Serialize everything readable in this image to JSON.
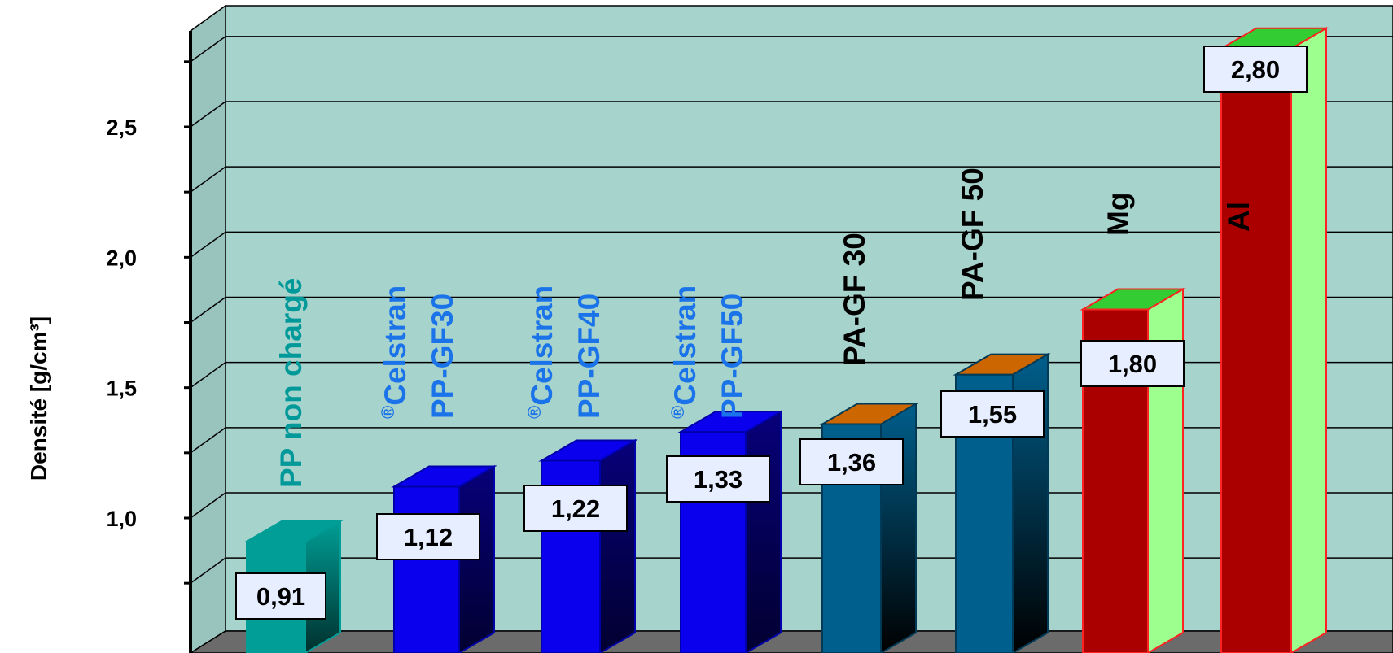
{
  "chart_data": {
    "type": "bar",
    "ylabel": "Densité [g/cm³]",
    "ylim": [
      0.7,
      2.8
    ],
    "yticks": [
      "1,0",
      "1,5",
      "2,0",
      "2,5"
    ],
    "ytick_values": [
      1.0,
      1.5,
      2.0,
      2.5
    ],
    "grid": true,
    "bars": [
      {
        "value": 0.91,
        "value_label": "0,91",
        "label_lines": [
          "PP non chargé"
        ],
        "label_color": "#009999",
        "superscript_mark": ""
      },
      {
        "value": 1.12,
        "value_label": "1,12",
        "label_lines": [
          "Celstran",
          "PP-GF30"
        ],
        "label_color": "#1a73e8",
        "superscript_mark": "®"
      },
      {
        "value": 1.22,
        "value_label": "1,22",
        "label_lines": [
          "Celstran",
          "PP-GF40"
        ],
        "label_color": "#1a73e8",
        "superscript_mark": "®"
      },
      {
        "value": 1.33,
        "value_label": "1,33",
        "label_lines": [
          "Celstran",
          "PP-GF50"
        ],
        "label_color": "#1a73e8",
        "superscript_mark": "®"
      },
      {
        "value": 1.36,
        "value_label": "1,36",
        "label_lines": [
          "PA-GF 30"
        ],
        "label_color": "#000000",
        "superscript_mark": ""
      },
      {
        "value": 1.55,
        "value_label": "1,55",
        "label_lines": [
          "PA-GF 50"
        ],
        "label_color": "#000000",
        "superscript_mark": ""
      },
      {
        "value": 1.8,
        "value_label": "1,80",
        "label_lines": [
          "Mg"
        ],
        "label_color": "#000000",
        "superscript_mark": ""
      },
      {
        "value": 2.8,
        "value_label": "2,80",
        "label_lines": [
          "Al"
        ],
        "label_color": "#000000",
        "superscript_mark": ""
      }
    ],
    "colors": {
      "background_wall": "#a7d3cd",
      "side_wall": "#99c4be",
      "floor": "#6b6b6b",
      "teal": "#009e96",
      "blue": "#0a00ee",
      "steel": "#005f8c",
      "steel_top": "#cc6600",
      "red": "#aa0000",
      "red_edge": "#ff2222",
      "green_side": "#9cff8e",
      "green_top": "#33cc33",
      "value_box": "#e6eeff"
    }
  }
}
